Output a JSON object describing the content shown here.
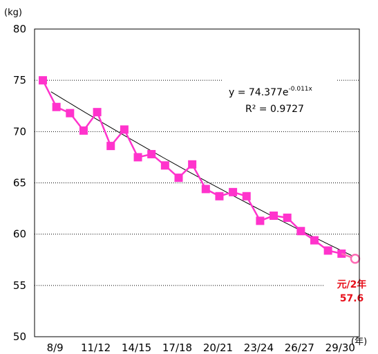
{
  "chart_data": {
    "type": "line",
    "y_unit": "(kg)",
    "x_unit": "(年)",
    "ylim": [
      50,
      80
    ],
    "yticks": [
      50,
      55,
      60,
      65,
      70,
      75,
      80
    ],
    "x_tick_labels": [
      "8/9",
      "11/12",
      "14/15",
      "17/18",
      "20/21",
      "23/24",
      "26/27",
      "29/30"
    ],
    "x_tick_positions": [
      1,
      4,
      7,
      10,
      13,
      16,
      19,
      22
    ],
    "grid": true,
    "series": [
      {
        "x": [
          0,
          1,
          2,
          3,
          4,
          5,
          6,
          7,
          8,
          9,
          10,
          11,
          12,
          13,
          14,
          15,
          16,
          17,
          18,
          19,
          20,
          21,
          22
        ],
        "values": [
          75.0,
          72.4,
          71.8,
          70.1,
          71.9,
          68.6,
          70.2,
          67.5,
          67.8,
          66.7,
          65.5,
          66.8,
          64.4,
          63.7,
          64.1,
          63.7,
          61.3,
          61.8,
          61.6,
          60.3,
          59.4,
          58.4,
          58.1
        ],
        "color": "#ff33cc"
      }
    ],
    "trendline": {
      "equation_prefix": "y = 74.377e",
      "equation_exponent": "-0.011x",
      "r_squared": "R² = 0.9727",
      "a": 74.377,
      "b": -0.011,
      "color": "#000000"
    },
    "highlight": {
      "x": 23,
      "value": 57.6,
      "label_year": "元/2年",
      "label_value": "57.6",
      "color": "#ff6ab4",
      "label_color": "#e8101b"
    }
  }
}
